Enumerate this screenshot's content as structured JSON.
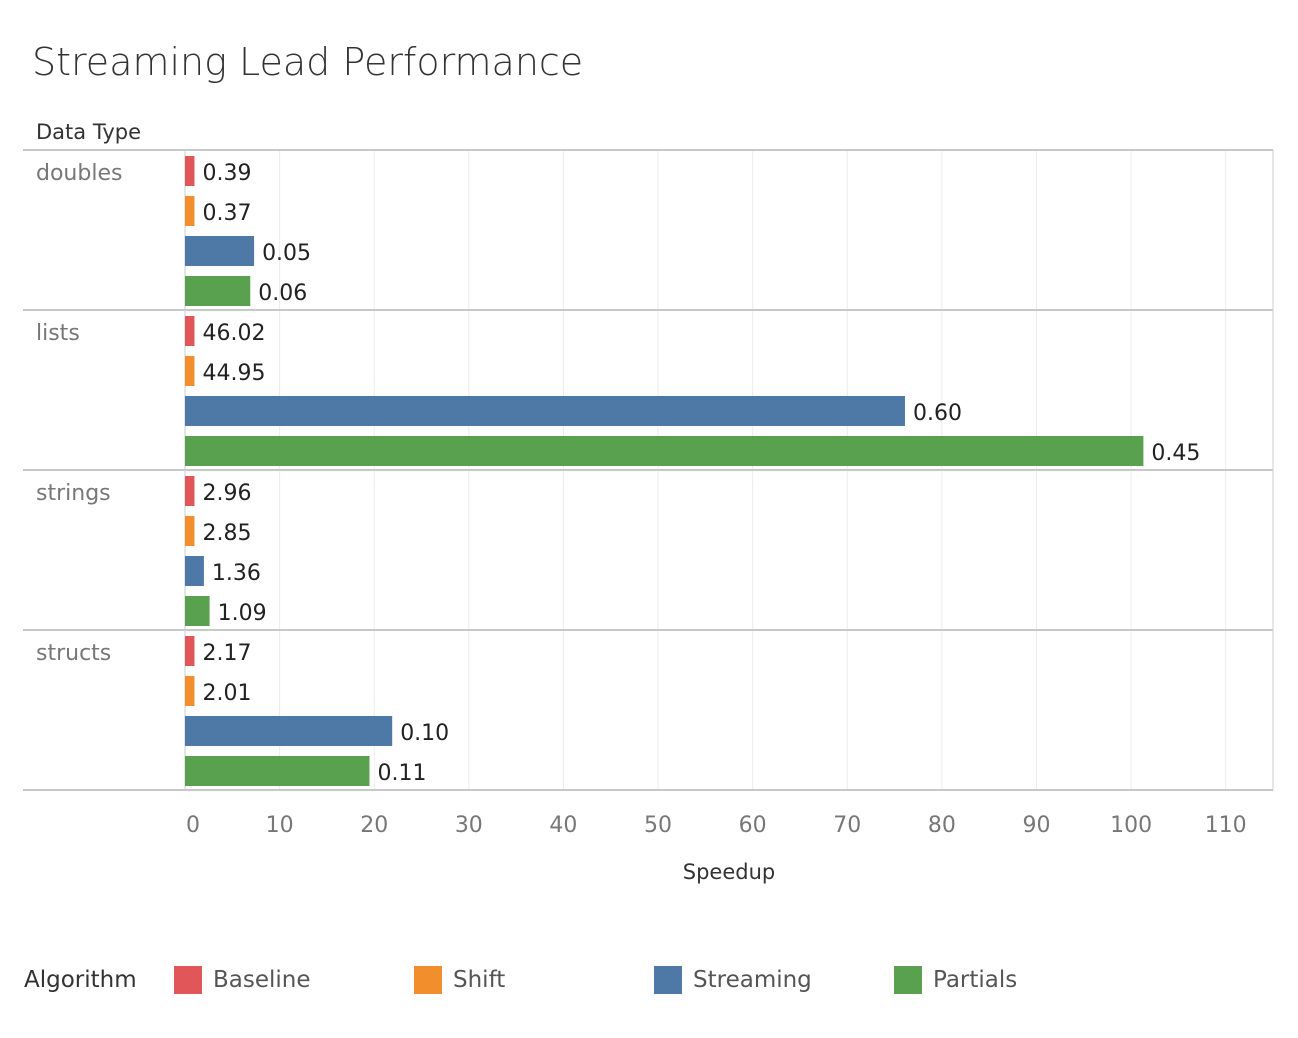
{
  "title": "Streaming Lead Performance",
  "chart_data": {
    "type": "bar",
    "orientation": "horizontal",
    "title": "Streaming Lead Performance",
    "row_header": "Data Type",
    "xlabel": "Speedup",
    "xlim": [
      0,
      115
    ],
    "xticks": [
      0,
      10,
      20,
      30,
      40,
      50,
      60,
      70,
      80,
      90,
      100,
      110
    ],
    "grid": true,
    "legend_position": "bottom",
    "legend_title": "Algorithm",
    "categories": [
      "doubles",
      "lists",
      "strings",
      "structs"
    ],
    "series": [
      {
        "name": "Baseline",
        "color": "#e15759",
        "values": [
          1,
          1,
          1,
          1
        ],
        "labels": [
          "0.39",
          "46.02",
          "2.96",
          "2.17"
        ]
      },
      {
        "name": "Shift",
        "color": "#f28e2b",
        "values": [
          1,
          1,
          1,
          1
        ],
        "labels": [
          "0.37",
          "44.95",
          "2.85",
          "2.01"
        ]
      },
      {
        "name": "Streaming",
        "color": "#4e79a7",
        "values": [
          7.3,
          76.1,
          2.0,
          21.9
        ],
        "labels": [
          "0.05",
          "0.60",
          "1.36",
          "0.10"
        ]
      },
      {
        "name": "Partials",
        "color": "#59a14f",
        "values": [
          6.9,
          101.3,
          2.6,
          19.5
        ],
        "labels": [
          "0.06",
          "0.45",
          "1.09",
          "0.11"
        ]
      }
    ]
  }
}
